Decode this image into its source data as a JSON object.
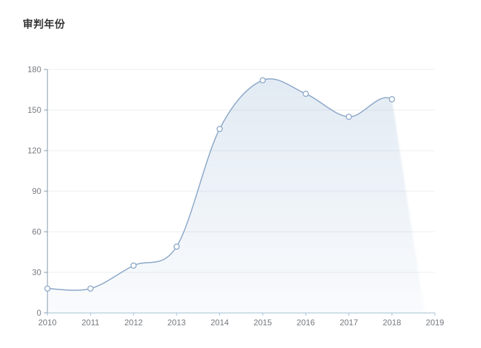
{
  "title": "审判年份",
  "chart_data": {
    "type": "line",
    "title": "审判年份",
    "categories": [
      "2010",
      "2011",
      "2012",
      "2013",
      "2014",
      "2015",
      "2016",
      "2017",
      "2018",
      "2019"
    ],
    "series": [
      {
        "name": "审判年份",
        "values": [
          18,
          18,
          35,
          49,
          136,
          172,
          162,
          145,
          158,
          null
        ]
      }
    ],
    "xlabel": "",
    "ylabel": "",
    "ylim": [
      0,
      180
    ],
    "yticks": [
      0,
      30,
      60,
      90,
      120,
      150,
      180
    ],
    "grid": true,
    "legend": "none",
    "smooth": true,
    "marker": "hollow-circle",
    "area": true,
    "colors": {
      "line": "#8ea9c9",
      "marker_fill": "#ffffff",
      "area": "#9ebad7",
      "gridline": "#e9ecef",
      "y_axis": "#7f95ab",
      "x_axis": "#9fbfd6",
      "tick_label": "#75787e",
      "title": "#333333"
    }
  }
}
